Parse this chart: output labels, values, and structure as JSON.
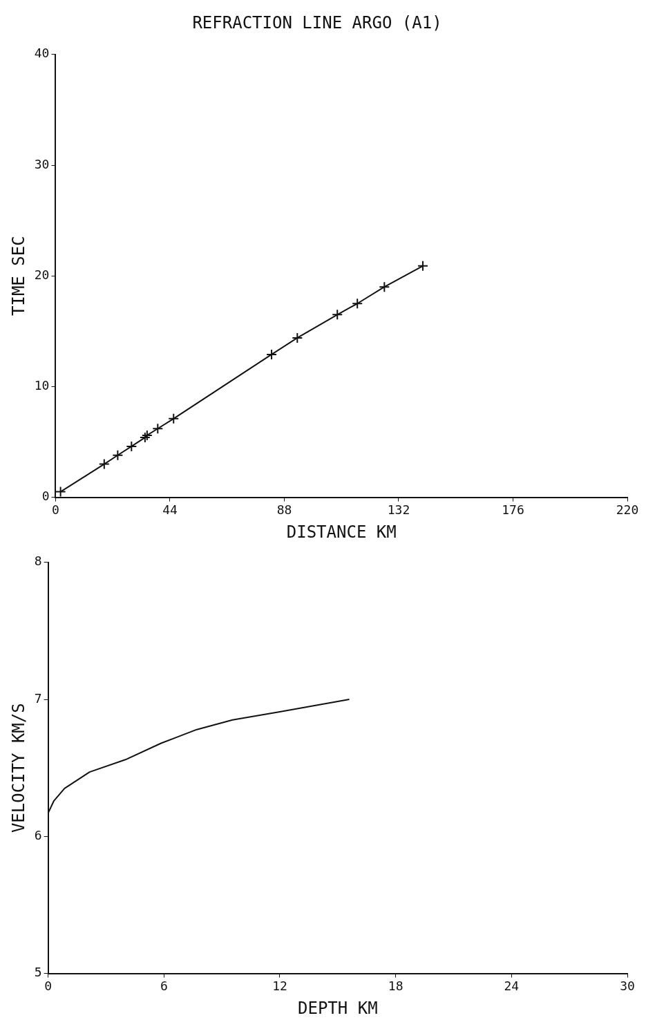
{
  "chart_data": [
    {
      "type": "line",
      "title": "REFRACTION LINE ARGO (A1)",
      "xlabel": "DISTANCE KM",
      "ylabel": "TIME SEC",
      "x": [
        1.9,
        18.7,
        23.9,
        29.2,
        34.4,
        35.2,
        39.3,
        45.4,
        83.1,
        93.0,
        108.4,
        116.1,
        126.5,
        141.3
      ],
      "values": [
        0.5,
        3.0,
        3.8,
        4.6,
        5.4,
        5.6,
        6.2,
        7.1,
        12.9,
        14.4,
        16.5,
        17.5,
        19.0,
        20.9
      ],
      "color": "#111111",
      "marker": "cross",
      "line_style": "solid",
      "grid": false,
      "legend": false,
      "xlim": [
        0,
        220
      ],
      "xticks": [
        0,
        44,
        88,
        132,
        176,
        220
      ],
      "ylim": [
        0,
        40
      ],
      "yticks": [
        0,
        10,
        20,
        30,
        40
      ]
    },
    {
      "type": "line",
      "xlabel": "DEPTH KM",
      "ylabel": "VELOCITY KM/S",
      "x": [
        0,
        0.3,
        0.85,
        2.15,
        4.0,
        5.85,
        7.7,
        9.55,
        12.0,
        14.0,
        15.6
      ],
      "values": [
        6.17,
        6.26,
        6.35,
        6.47,
        6.56,
        6.68,
        6.78,
        6.85,
        6.91,
        6.96,
        7.0
      ],
      "color": "#111111",
      "marker": "none",
      "line_style": "solid",
      "grid": false,
      "legend": false,
      "xlim": [
        0,
        30
      ],
      "xticks": [
        0,
        6,
        12,
        18,
        24,
        30
      ],
      "ylim": [
        5,
        8
      ],
      "yticks": [
        5,
        6,
        7,
        8
      ]
    }
  ]
}
